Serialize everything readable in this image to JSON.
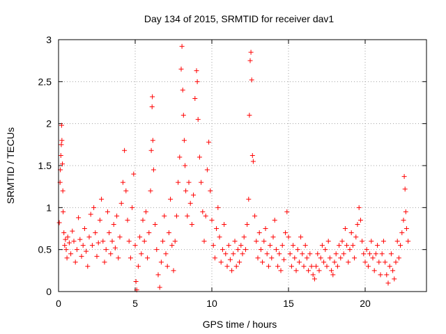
{
  "chart_data": {
    "type": "scatter",
    "title": "Day 134 of 2015, SRMTID for receiver dav1",
    "xlabel": "GPS time / hours",
    "ylabel": "SRMTID / TECUs",
    "xlim": [
      0,
      24
    ],
    "ylim": [
      0,
      3
    ],
    "x_ticks": [
      0,
      5,
      10,
      15,
      20
    ],
    "y_ticks": [
      0,
      0.5,
      1,
      1.5,
      2,
      2.5,
      3
    ],
    "x_tick_labels": [
      "0",
      "5",
      "10",
      "15",
      "20"
    ],
    "y_tick_labels": [
      "0",
      "0.5",
      "1",
      "1.5",
      "2",
      "2.5",
      "3"
    ],
    "grid": true,
    "marker": "+",
    "color": "#ff0000",
    "series": [
      {
        "name": "dav1",
        "points": [
          [
            0.05,
            0.82
          ],
          [
            0.1,
            1.3
          ],
          [
            0.12,
            1.45
          ],
          [
            0.15,
            1.62
          ],
          [
            0.18,
            1.75
          ],
          [
            0.2,
            1.98
          ],
          [
            0.22,
            1.8
          ],
          [
            0.25,
            1.52
          ],
          [
            0.28,
            1.2
          ],
          [
            0.3,
            0.95
          ],
          [
            0.35,
            0.7
          ],
          [
            0.4,
            0.55
          ],
          [
            0.45,
            0.62
          ],
          [
            0.5,
            0.5
          ],
          [
            0.55,
            0.4
          ],
          [
            0.6,
            0.65
          ],
          [
            0.7,
            0.58
          ],
          [
            0.8,
            0.45
          ],
          [
            0.9,
            0.72
          ],
          [
            1.0,
            0.6
          ],
          [
            1.1,
            0.35
          ],
          [
            1.2,
            0.5
          ],
          [
            1.3,
            0.88
          ],
          [
            1.4,
            0.62
          ],
          [
            1.5,
            0.42
          ],
          [
            1.6,
            0.55
          ],
          [
            1.7,
            0.75
          ],
          [
            1.8,
            0.48
          ],
          [
            1.9,
            0.3
          ],
          [
            2.0,
            0.65
          ],
          [
            2.1,
            0.92
          ],
          [
            2.2,
            0.55
          ],
          [
            2.3,
            1.0
          ],
          [
            2.4,
            0.7
          ],
          [
            2.5,
            0.42
          ],
          [
            2.6,
            0.58
          ],
          [
            2.7,
            0.85
          ],
          [
            2.8,
            1.1
          ],
          [
            2.9,
            0.6
          ],
          [
            3.0,
            0.35
          ],
          [
            3.1,
            0.5
          ],
          [
            3.2,
            0.95
          ],
          [
            3.3,
            0.7
          ],
          [
            3.4,
            0.45
          ],
          [
            3.5,
            0.6
          ],
          [
            3.6,
            0.8
          ],
          [
            3.7,
            0.52
          ],
          [
            3.8,
            0.9
          ],
          [
            3.9,
            0.4
          ],
          [
            4.0,
            0.65
          ],
          [
            4.1,
            1.05
          ],
          [
            4.2,
            1.3
          ],
          [
            4.3,
            1.68
          ],
          [
            4.4,
            1.2
          ],
          [
            4.5,
            0.85
          ],
          [
            4.6,
            0.6
          ],
          [
            4.7,
            0.4
          ],
          [
            4.8,
            1.0
          ],
          [
            4.9,
            1.4
          ],
          [
            5.0,
            0.55
          ],
          [
            5.05,
            0.12
          ],
          [
            5.1,
            0.02
          ],
          [
            5.2,
            0.3
          ],
          [
            5.3,
            0.65
          ],
          [
            5.4,
            0.45
          ],
          [
            5.5,
            0.85
          ],
          [
            5.6,
            0.6
          ],
          [
            5.7,
            0.95
          ],
          [
            5.8,
            0.4
          ],
          [
            5.9,
            0.7
          ],
          [
            6.0,
            1.2
          ],
          [
            6.05,
            1.68
          ],
          [
            6.1,
            2.2
          ],
          [
            6.12,
            2.32
          ],
          [
            6.15,
            1.8
          ],
          [
            6.2,
            1.45
          ],
          [
            6.3,
            0.8
          ],
          [
            6.4,
            0.5
          ],
          [
            6.5,
            0.2
          ],
          [
            6.6,
            0.05
          ],
          [
            6.7,
            0.35
          ],
          [
            6.8,
            0.6
          ],
          [
            6.9,
            0.9
          ],
          [
            7.0,
            0.45
          ],
          [
            7.1,
            0.3
          ],
          [
            7.2,
            0.7
          ],
          [
            7.3,
            1.1
          ],
          [
            7.4,
            0.55
          ],
          [
            7.5,
            0.25
          ],
          [
            7.6,
            0.6
          ],
          [
            7.7,
            0.9
          ],
          [
            7.8,
            1.3
          ],
          [
            7.9,
            1.6
          ],
          [
            8.0,
            2.65
          ],
          [
            8.05,
            2.92
          ],
          [
            8.1,
            2.4
          ],
          [
            8.15,
            2.1
          ],
          [
            8.2,
            1.8
          ],
          [
            8.25,
            1.5
          ],
          [
            8.3,
            1.2
          ],
          [
            8.4,
            0.9
          ],
          [
            8.5,
            1.3
          ],
          [
            8.6,
            1.05
          ],
          [
            8.7,
            0.8
          ],
          [
            8.8,
            1.15
          ],
          [
            8.9,
            2.3
          ],
          [
            9.0,
            2.63
          ],
          [
            9.05,
            2.5
          ],
          [
            9.1,
            2.05
          ],
          [
            9.2,
            1.6
          ],
          [
            9.3,
            1.3
          ],
          [
            9.4,
            0.95
          ],
          [
            9.5,
            0.6
          ],
          [
            9.6,
            0.9
          ],
          [
            9.7,
            1.45
          ],
          [
            9.8,
            1.78
          ],
          [
            9.9,
            1.2
          ],
          [
            10.0,
            0.85
          ],
          [
            10.1,
            0.55
          ],
          [
            10.2,
            0.4
          ],
          [
            10.3,
            0.75
          ],
          [
            10.4,
            1.0
          ],
          [
            10.5,
            0.65
          ],
          [
            10.6,
            0.35
          ],
          [
            10.7,
            0.5
          ],
          [
            10.8,
            0.8
          ],
          [
            10.9,
            0.45
          ],
          [
            11.0,
            0.3
          ],
          [
            11.1,
            0.55
          ],
          [
            11.2,
            0.38
          ],
          [
            11.3,
            0.25
          ],
          [
            11.4,
            0.45
          ],
          [
            11.5,
            0.6
          ],
          [
            11.6,
            0.3
          ],
          [
            11.7,
            0.5
          ],
          [
            11.8,
            0.35
          ],
          [
            11.9,
            0.55
          ],
          [
            12.0,
            0.45
          ],
          [
            12.1,
            0.65
          ],
          [
            12.2,
            0.5
          ],
          [
            12.3,
            0.8
          ],
          [
            12.4,
            1.1
          ],
          [
            12.45,
            2.1
          ],
          [
            12.5,
            2.75
          ],
          [
            12.55,
            2.85
          ],
          [
            12.6,
            2.52
          ],
          [
            12.65,
            1.62
          ],
          [
            12.7,
            1.55
          ],
          [
            12.8,
            0.9
          ],
          [
            12.9,
            0.6
          ],
          [
            13.0,
            0.4
          ],
          [
            13.1,
            0.7
          ],
          [
            13.2,
            0.5
          ],
          [
            13.3,
            0.35
          ],
          [
            13.4,
            0.6
          ],
          [
            13.5,
            0.75
          ],
          [
            13.6,
            0.45
          ],
          [
            13.7,
            0.3
          ],
          [
            13.8,
            0.55
          ],
          [
            13.9,
            0.4
          ],
          [
            14.0,
            0.65
          ],
          [
            14.1,
            0.85
          ],
          [
            14.2,
            0.5
          ],
          [
            14.3,
            0.3
          ],
          [
            14.4,
            0.45
          ],
          [
            14.5,
            0.25
          ],
          [
            14.6,
            0.55
          ],
          [
            14.7,
            0.38
          ],
          [
            14.8,
            0.7
          ],
          [
            14.9,
            0.95
          ],
          [
            15.0,
            0.65
          ],
          [
            15.1,
            0.45
          ],
          [
            15.2,
            0.3
          ],
          [
            15.3,
            0.55
          ],
          [
            15.4,
            0.4
          ],
          [
            15.5,
            0.25
          ],
          [
            15.6,
            0.5
          ],
          [
            15.7,
            0.35
          ],
          [
            15.8,
            0.65
          ],
          [
            15.9,
            0.45
          ],
          [
            16.0,
            0.3
          ],
          [
            16.1,
            0.55
          ],
          [
            16.2,
            0.4
          ],
          [
            16.3,
            0.25
          ],
          [
            16.4,
            0.45
          ],
          [
            16.5,
            0.3
          ],
          [
            16.6,
            0.2
          ],
          [
            16.7,
            0.15
          ],
          [
            16.8,
            0.3
          ],
          [
            16.9,
            0.45
          ],
          [
            17.0,
            0.25
          ],
          [
            17.1,
            0.4
          ],
          [
            17.2,
            0.55
          ],
          [
            17.3,
            0.35
          ],
          [
            17.4,
            0.5
          ],
          [
            17.5,
            0.3
          ],
          [
            17.6,
            0.6
          ],
          [
            17.7,
            0.4
          ],
          [
            17.8,
            0.25
          ],
          [
            17.9,
            0.2
          ],
          [
            18.0,
            0.35
          ],
          [
            18.1,
            0.45
          ],
          [
            18.2,
            0.3
          ],
          [
            18.3,
            0.55
          ],
          [
            18.4,
            0.4
          ],
          [
            18.5,
            0.6
          ],
          [
            18.6,
            0.45
          ],
          [
            18.7,
            0.75
          ],
          [
            18.8,
            0.55
          ],
          [
            18.9,
            0.35
          ],
          [
            19.0,
            0.5
          ],
          [
            19.1,
            0.7
          ],
          [
            19.2,
            0.55
          ],
          [
            19.3,
            0.4
          ],
          [
            19.4,
            0.65
          ],
          [
            19.5,
            0.8
          ],
          [
            19.6,
            1.0
          ],
          [
            19.7,
            0.85
          ],
          [
            19.8,
            0.6
          ],
          [
            19.9,
            0.45
          ],
          [
            20.0,
            0.35
          ],
          [
            20.1,
            0.5
          ],
          [
            20.2,
            0.3
          ],
          [
            20.3,
            0.45
          ],
          [
            20.4,
            0.6
          ],
          [
            20.5,
            0.4
          ],
          [
            20.6,
            0.25
          ],
          [
            20.7,
            0.45
          ],
          [
            20.8,
            0.55
          ],
          [
            20.9,
            0.35
          ],
          [
            21.0,
            0.2
          ],
          [
            21.1,
            0.45
          ],
          [
            21.2,
            0.6
          ],
          [
            21.3,
            0.35
          ],
          [
            21.4,
            0.2
          ],
          [
            21.5,
            0.1
          ],
          [
            21.6,
            0.3
          ],
          [
            21.7,
            0.45
          ],
          [
            21.8,
            0.25
          ],
          [
            21.9,
            0.15
          ],
          [
            22.0,
            0.35
          ],
          [
            22.1,
            0.6
          ],
          [
            22.2,
            0.4
          ],
          [
            22.3,
            0.55
          ],
          [
            22.4,
            0.7
          ],
          [
            22.5,
            0.85
          ],
          [
            22.55,
            1.37
          ],
          [
            22.6,
            1.22
          ],
          [
            22.65,
            0.95
          ],
          [
            22.7,
            0.75
          ],
          [
            22.8,
            0.6
          ]
        ]
      }
    ]
  }
}
